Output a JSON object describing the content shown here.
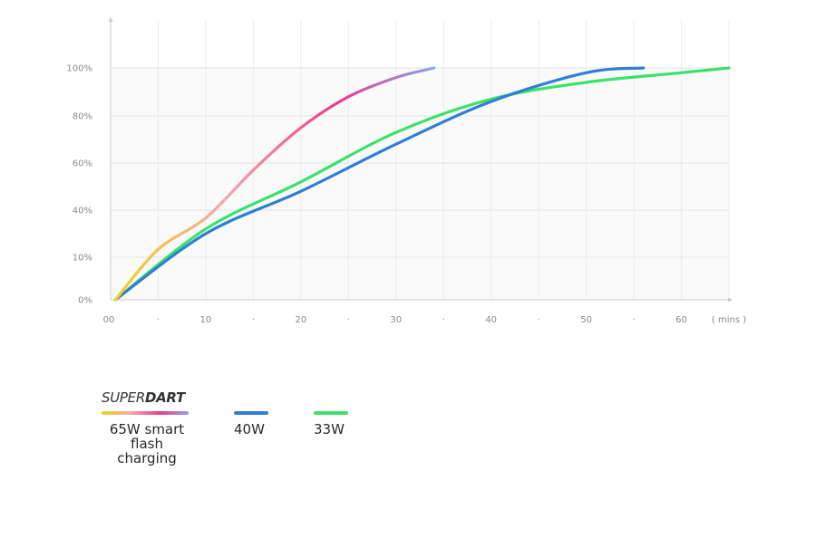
{
  "chart_data": {
    "type": "line",
    "xlabel": "( mins )",
    "ylabel": "",
    "title": "",
    "xlim": [
      0,
      65
    ],
    "ylim": [
      0,
      100
    ],
    "x_ticks": [
      "00",
      "·",
      "10",
      "·",
      "20",
      "·",
      "30",
      "·",
      "40",
      "·",
      "50",
      "·",
      "60"
    ],
    "y_ticks": [
      "0%",
      "10%",
      "40%",
      "60%",
      "80%",
      "100%"
    ],
    "grid": true,
    "legend_position": "bottom-left",
    "series": [
      {
        "name": "65W smart flash charging",
        "brand": "SUPERDART",
        "colors": [
          "#f2d21c",
          "#f4a9a9",
          "#ea3c8e",
          "#8aa6e6"
        ],
        "x": [
          0.5,
          5,
          10,
          15,
          20,
          25,
          30,
          34
        ],
        "y": [
          0,
          15,
          35,
          57,
          75,
          88,
          96,
          100
        ]
      },
      {
        "name": "40W",
        "color": "#2f7fd6",
        "x": [
          0.5,
          10,
          20,
          30,
          40,
          50,
          56
        ],
        "y": [
          0,
          25,
          48,
          68,
          86,
          98,
          100
        ]
      },
      {
        "name": "33W",
        "color": "#3be26a",
        "x": [
          0.5,
          10,
          20,
          30,
          40,
          50,
          60,
          65
        ],
        "y": [
          0,
          28,
          52,
          73,
          87,
          94,
          98,
          100
        ]
      }
    ]
  },
  "legend": {
    "brand_light": "SUPER",
    "brand_bold": "DART",
    "item1_line1": "65W smart",
    "item1_line2": "flash charging",
    "item2": "40W",
    "item3": "33W"
  }
}
